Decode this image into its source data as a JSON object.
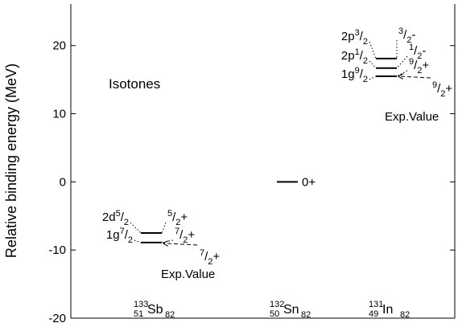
{
  "chart_data": {
    "type": "level",
    "y_label": "Relative binding energy (MeV)",
    "annotation": "Isotones",
    "slash": "/",
    "ylim": [
      -20,
      26.1
    ],
    "yticks": [
      -20,
      -10,
      0,
      10,
      20
    ],
    "line_color": "#000000",
    "groups": [
      {
        "nucleus": {
          "mass": "133",
          "z": "51",
          "symbol": "Sb",
          "n": "82"
        },
        "levels": [
          {
            "orbital": "2d",
            "num": "5",
            "den": "2",
            "parity": "+",
            "energy": -7.5
          },
          {
            "orbital": "1g",
            "num": "7",
            "den": "2",
            "parity": "+",
            "energy": -8.9
          }
        ],
        "exp": {
          "num": "7",
          "den": "2",
          "parity": "+",
          "energy": -9.0,
          "label": "Exp.Value"
        }
      },
      {
        "nucleus": {
          "mass": "132",
          "z": "50",
          "symbol": "Sn",
          "n": "82"
        },
        "ground": {
          "label": "0+",
          "energy": 0
        }
      },
      {
        "nucleus": {
          "mass": "131",
          "z": "49",
          "symbol": "In",
          "n": "82"
        },
        "levels": [
          {
            "orbital": "2p",
            "num": "3",
            "den": "2",
            "parity": "-",
            "energy": 18.1
          },
          {
            "orbital": "2p",
            "num": "1",
            "den": "2",
            "parity": "-",
            "energy": 16.7
          },
          {
            "orbital": "1g",
            "num": "9",
            "den": "2",
            "parity": "+",
            "energy": 15.5
          }
        ],
        "exp": {
          "num": "9",
          "den": "2",
          "parity": "+",
          "energy": 15.5,
          "label": "Exp.Value"
        }
      }
    ]
  }
}
